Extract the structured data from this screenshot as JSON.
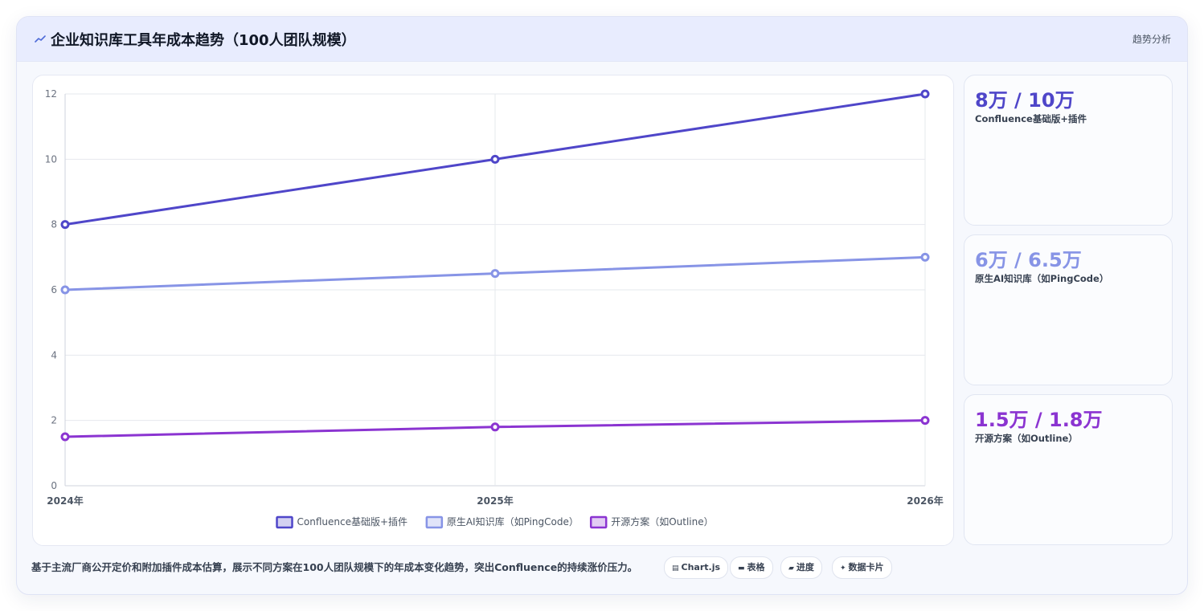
{
  "header": {
    "icon": "trend-line-icon",
    "title": "企业知识库工具年成本趋势（100人团队规模）",
    "tag": "趋势分析"
  },
  "chart_data": {
    "type": "line",
    "categories": [
      "2024年",
      "2025年",
      "2026年"
    ],
    "series": [
      {
        "name": "Confluence基础版+插件",
        "values": [
          8,
          10,
          12
        ],
        "color": "#4f46c9"
      },
      {
        "name": "原生AI知识库（如PingCode）",
        "values": [
          6,
          6.5,
          7
        ],
        "color": "#8794e6"
      },
      {
        "name": "开源方案（如Outline）",
        "values": [
          1.5,
          1.8,
          2
        ],
        "color": "#8b34d1"
      }
    ],
    "ylim": [
      0,
      12
    ],
    "yticks": [
      0,
      2,
      4,
      6,
      8,
      10,
      12
    ],
    "grid": true,
    "legend": "bottom"
  },
  "cards": [
    {
      "value": "8万 / 10万",
      "label": "Confluence基础版+插件",
      "color": "#4f46c9"
    },
    {
      "value": "6万 / 6.5万",
      "label": "原生AI知识库（如PingCode）",
      "color": "#8794e6"
    },
    {
      "value": "1.5万 / 1.8万",
      "label": "开源方案（如Outline）",
      "color": "#8b34d1"
    }
  ],
  "footer": {
    "text": "基于主流厂商公开定价和附加插件成本估算，展示不同方案在100人团队规模下的年成本变化趋势，突出Confluence的持续涨价压力。",
    "chips": [
      {
        "icon": "chart-icon",
        "glyph": "▤",
        "label": "Chart.js"
      },
      {
        "icon": "table-icon",
        "glyph": "▬",
        "label": "表格"
      },
      {
        "icon": "progress-icon",
        "glyph": "▰",
        "label": "进度"
      },
      {
        "icon": "data-card-icon",
        "glyph": "✦",
        "label": "数据卡片"
      }
    ]
  }
}
